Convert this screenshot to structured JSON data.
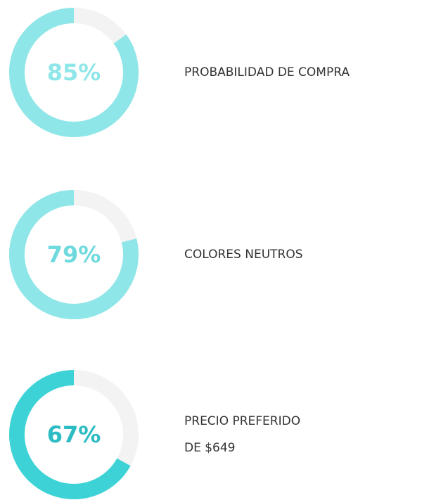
{
  "items": [
    {
      "value": 85,
      "value_label": "85%",
      "lines": [
        "PROBABILIDAD DE COMPRA"
      ],
      "color": "#8fe6e8",
      "text_color": "#8fe6e8"
    },
    {
      "value": 79,
      "value_label": "79%",
      "lines": [
        "COLORES NEUTROS"
      ],
      "color": "#8fe6e8",
      "text_color": "#6fdadd"
    },
    {
      "value": 67,
      "value_label": "67%",
      "lines": [
        "PRECIO PREFERIDO",
        "DE $649"
      ],
      "color": "#3dd3d6",
      "text_color": "#2bbcc3"
    }
  ]
}
